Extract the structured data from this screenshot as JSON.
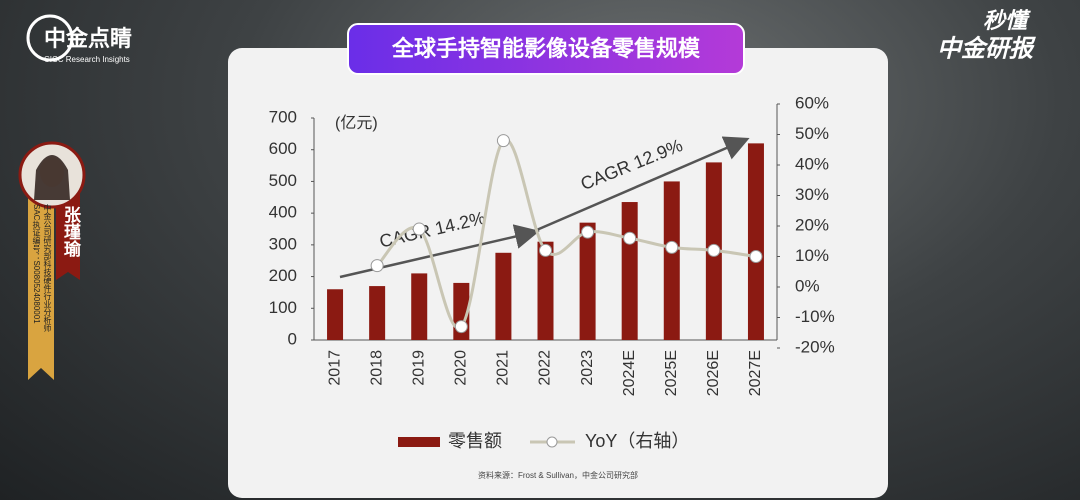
{
  "brand": {
    "name": "中金点睛",
    "subname": "CICC Research Insights",
    "corner_top": "秒懂",
    "corner_bottom": "中金研报"
  },
  "presenter": {
    "name": "张瑾瑜",
    "role": "中金公司研究部科技硬件行业分析师",
    "license": "SAC执证编号：S0080524080001"
  },
  "source": "资料来源：Frost & Sullivan，中金公司研究部",
  "chart_data": {
    "type": "bar_line",
    "title": "全球手持智能影像设备零售规模",
    "y_unit": "(亿元)",
    "categories": [
      "2017",
      "2018",
      "2019",
      "2020",
      "2021",
      "2022",
      "2023",
      "2024E",
      "2025E",
      "2026E",
      "2027E"
    ],
    "series": [
      {
        "name": "零售额",
        "color": "#8b1a12",
        "values": [
          160,
          170,
          210,
          180,
          275,
          310,
          370,
          435,
          500,
          560,
          620
        ]
      },
      {
        "name": "YoY（右轴）",
        "color": "#c9c6b4",
        "axis": "y2",
        "values": [
          null,
          7,
          19,
          -13,
          48,
          12,
          18,
          16,
          13,
          12,
          10
        ]
      }
    ],
    "ylim": [
      0,
      700
    ],
    "yticks": [
      0,
      100,
      200,
      300,
      400,
      500,
      600,
      700
    ],
    "y2lim": [
      -20,
      60
    ],
    "y2ticks": [
      {
        "value": -20,
        "label": "-20%"
      },
      {
        "value": -10,
        "label": "-10%"
      },
      {
        "value": 0,
        "label": "0%"
      },
      {
        "value": 10,
        "label": "10%"
      },
      {
        "value": 20,
        "label": "20%"
      },
      {
        "value": 30,
        "label": "30%"
      },
      {
        "value": 40,
        "label": "40%"
      },
      {
        "value": 50,
        "label": "50%"
      },
      {
        "value": 60,
        "label": "60%"
      }
    ],
    "annotations": [
      "CAGR 14.2%",
      "CAGR 12.9%"
    ],
    "legend": "bottom"
  }
}
